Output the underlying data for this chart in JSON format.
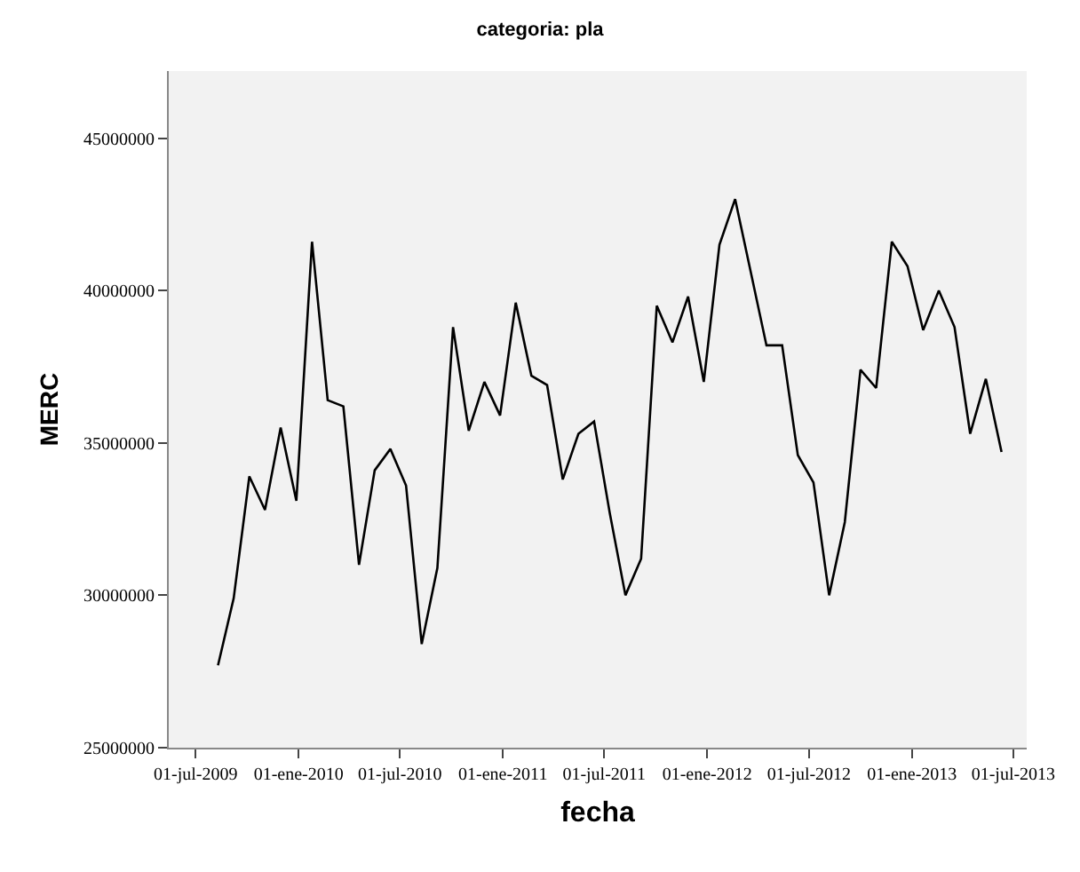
{
  "chart_data": {
    "type": "line",
    "title": "categoria: pla",
    "xlabel": "fecha",
    "ylabel": "MERC",
    "x": [
      "2009-08-10",
      "2009-09-07",
      "2009-10-05",
      "2009-11-02",
      "2009-11-30",
      "2009-12-28",
      "2010-01-25",
      "2010-02-22",
      "2010-03-22",
      "2010-04-19",
      "2010-05-17",
      "2010-06-14",
      "2010-07-12",
      "2010-08-09",
      "2010-09-06",
      "2010-10-04",
      "2010-11-01",
      "2010-11-29",
      "2010-12-27",
      "2011-01-24",
      "2011-02-21",
      "2011-03-21",
      "2011-04-18",
      "2011-05-16",
      "2011-06-13",
      "2011-07-11",
      "2011-08-08",
      "2011-09-05",
      "2011-10-03",
      "2011-10-31",
      "2011-11-28",
      "2011-12-26",
      "2012-01-23",
      "2012-02-20",
      "2012-03-19",
      "2012-04-16",
      "2012-05-14",
      "2012-06-11",
      "2012-07-09",
      "2012-08-06",
      "2012-09-03",
      "2012-10-01",
      "2012-10-29",
      "2012-11-26",
      "2012-12-24",
      "2013-01-21",
      "2013-02-18",
      "2013-03-18",
      "2013-04-15",
      "2013-05-13",
      "2013-06-10"
    ],
    "series": [
      {
        "color": "#000000",
        "values": [
          27700000,
          29900000,
          33900000,
          32800000,
          35500000,
          33100000,
          41600000,
          36400000,
          36200000,
          31000000,
          34100000,
          34800000,
          33600000,
          28400000,
          30900000,
          38800000,
          35400000,
          37000000,
          35900000,
          39600000,
          37200000,
          36900000,
          33800000,
          35300000,
          35700000,
          32700000,
          30000000,
          31200000,
          39500000,
          38300000,
          39800000,
          37000000,
          41500000,
          43000000,
          40600000,
          38200000,
          38200000,
          34600000,
          33700000,
          30000000,
          32400000,
          37400000,
          36800000,
          41600000,
          40800000,
          38700000,
          40000000,
          38800000,
          35300000,
          37100000,
          34700000
        ]
      }
    ],
    "xlim": [
      "2009-05-14",
      "2013-07-25"
    ],
    "xticks": [
      {
        "value": "2009-07-01",
        "label": "01-jul-2009"
      },
      {
        "value": "2010-01-01",
        "label": "01-ene-2010"
      },
      {
        "value": "2010-07-01",
        "label": "01-jul-2010"
      },
      {
        "value": "2011-01-01",
        "label": "01-ene-2011"
      },
      {
        "value": "2011-07-01",
        "label": "01-jul-2011"
      },
      {
        "value": "2012-01-01",
        "label": "01-ene-2012"
      },
      {
        "value": "2012-07-01",
        "label": "01-jul-2012"
      },
      {
        "value": "2013-01-01",
        "label": "01-ene-2013"
      },
      {
        "value": "2013-07-01",
        "label": "01-jul-2013"
      }
    ],
    "ylim": [
      25000000,
      47200000
    ],
    "yticks": [
      25000000,
      30000000,
      35000000,
      40000000,
      45000000
    ],
    "grid": false,
    "marker": "none",
    "line_style": "solid"
  }
}
